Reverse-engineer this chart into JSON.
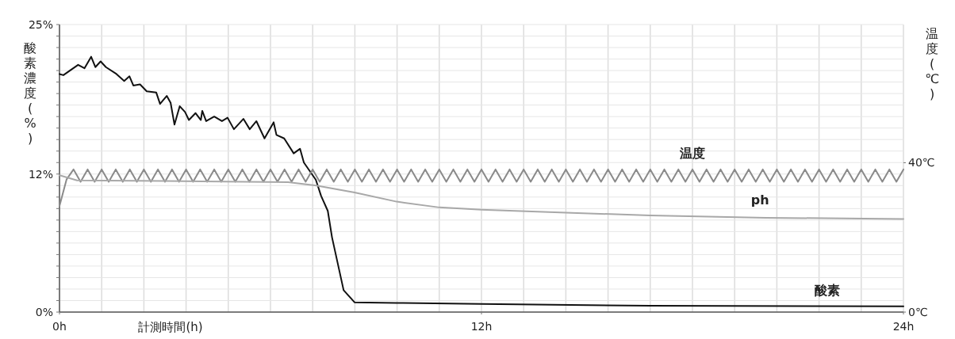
{
  "chart_data": {
    "type": "line",
    "xlabel": "計測時間(h)",
    "ylabel": "酸素濃度(%)",
    "y2label": "温度(℃)",
    "xlim": [
      0,
      24
    ],
    "ylim": [
      0,
      25
    ],
    "y2lim": [
      0,
      77
    ],
    "xticks": [
      {
        "value": 0,
        "label": "0h"
      },
      {
        "value": 1.2,
        "label": null
      },
      {
        "value": 2.4,
        "label": null
      },
      {
        "value": 3.6,
        "label": null
      },
      {
        "value": 4.8,
        "label": null
      },
      {
        "value": 6,
        "label": null
      },
      {
        "value": 7.2,
        "label": null
      },
      {
        "value": 8.4,
        "label": null
      },
      {
        "value": 9.6,
        "label": null
      },
      {
        "value": 10.8,
        "label": null
      },
      {
        "value": 12,
        "label": "12h"
      },
      {
        "value": 13.2,
        "label": null
      },
      {
        "value": 14.4,
        "label": null
      },
      {
        "value": 15.6,
        "label": null
      },
      {
        "value": 16.8,
        "label": null
      },
      {
        "value": 18,
        "label": null
      },
      {
        "value": 19.2,
        "label": null
      },
      {
        "value": 20.4,
        "label": null
      },
      {
        "value": 21.6,
        "label": null
      },
      {
        "value": 22.8,
        "label": null
      },
      {
        "value": 24,
        "label": "24h"
      }
    ],
    "yticks": [
      {
        "value": 0,
        "label": "0%"
      },
      {
        "value": 1,
        "label": null
      },
      {
        "value": 2,
        "label": null
      },
      {
        "value": 3,
        "label": null
      },
      {
        "value": 4,
        "label": null
      },
      {
        "value": 5,
        "label": null
      },
      {
        "value": 6,
        "label": null
      },
      {
        "value": 7,
        "label": null
      },
      {
        "value": 8,
        "label": null
      },
      {
        "value": 9,
        "label": null
      },
      {
        "value": 10,
        "label": null
      },
      {
        "value": 11,
        "label": null
      },
      {
        "value": 12,
        "label": "12%"
      },
      {
        "value": 13,
        "label": null
      },
      {
        "value": 14,
        "label": null
      },
      {
        "value": 15,
        "label": null
      },
      {
        "value": 16,
        "label": null
      },
      {
        "value": 17,
        "label": null
      },
      {
        "value": 18,
        "label": null
      },
      {
        "value": 19,
        "label": null
      },
      {
        "value": 20,
        "label": null
      },
      {
        "value": 21,
        "label": null
      },
      {
        "value": 22,
        "label": null
      },
      {
        "value": 23,
        "label": null
      },
      {
        "value": 24,
        "label": null
      },
      {
        "value": 25,
        "label": "25%"
      }
    ],
    "y2ticks": [
      {
        "value": 0,
        "label": "0℃"
      },
      {
        "value": 40,
        "label": "40℃"
      }
    ],
    "grid": true,
    "series": [
      {
        "name": "酸素",
        "color": "#111111",
        "x": [
          0,
          0.11,
          0.53,
          0.71,
          0.9,
          1.02,
          1.17,
          1.32,
          1.62,
          1.84,
          1.99,
          2.1,
          2.29,
          2.48,
          2.75,
          2.86,
          3.05,
          3.16,
          3.27,
          3.42,
          3.57,
          3.68,
          3.87,
          4.02,
          4.06,
          4.17,
          4.4,
          4.62,
          4.78,
          4.96,
          5.23,
          5.41,
          5.6,
          5.83,
          6.09,
          6.17,
          6.39,
          6.66,
          6.84,
          6.95,
          7.29,
          7.44,
          7.63,
          7.75,
          8.08,
          8.39,
          9.59,
          12,
          16.8,
          24
        ],
        "values": [
          20.7,
          20.6,
          21.5,
          21.2,
          22.2,
          21.3,
          21.8,
          21.3,
          20.7,
          20.1,
          20.5,
          19.7,
          19.8,
          19.2,
          19.1,
          18.1,
          18.8,
          18.2,
          16.3,
          17.9,
          17.4,
          16.7,
          17.3,
          16.7,
          17.5,
          16.6,
          17.0,
          16.6,
          16.9,
          15.9,
          16.8,
          15.9,
          16.6,
          15.1,
          16.5,
          15.4,
          15.1,
          13.8,
          14.2,
          13.0,
          11.5,
          10.1,
          8.8,
          6.5,
          1.9,
          0.85,
          0.8,
          0.7,
          0.55,
          0.5
        ]
      },
      {
        "name": "温度",
        "color": "#8a8a8a",
        "axis": "y2",
        "x": [
          0,
          0.2,
          0.4,
          0.6,
          0.8,
          1,
          1.2,
          1.4,
          1.6,
          1.8,
          2,
          2.2,
          2.4,
          2.6,
          2.8,
          3,
          3.2,
          3.4,
          3.6,
          3.8,
          4,
          4.2,
          4.4,
          4.6,
          4.8,
          5,
          5.2,
          5.4,
          5.6,
          5.8,
          6,
          6.2,
          6.4,
          6.6,
          6.8,
          7,
          7.2,
          7.4,
          7.6,
          7.8,
          8,
          8.2,
          8.4,
          8.6,
          8.8,
          9,
          9.2,
          9.4,
          9.6,
          9.8,
          10,
          10.2,
          10.4,
          10.6,
          10.8,
          11,
          11.2,
          11.4,
          11.6,
          11.8,
          12,
          12.2,
          12.4,
          12.6,
          12.8,
          13,
          13.2,
          13.4,
          13.6,
          13.8,
          14,
          14.2,
          14.4,
          14.6,
          14.8,
          15,
          15.2,
          15.4,
          15.6,
          15.8,
          16,
          16.2,
          16.4,
          16.6,
          16.8,
          17,
          17.2,
          17.4,
          17.6,
          17.8,
          18,
          18.2,
          18.4,
          18.6,
          18.8,
          19,
          19.2,
          19.4,
          19.6,
          19.8,
          20,
          20.2,
          20.4,
          20.6,
          20.8,
          21,
          21.2,
          21.4,
          21.6,
          21.8,
          22,
          22.2,
          22.4,
          22.6,
          22.8,
          23,
          23.2,
          23.4,
          23.6,
          23.8,
          24
        ],
        "values": [
          28.4,
          35.5,
          38.2,
          34.9,
          38.2,
          34.9,
          38.2,
          34.9,
          38.2,
          34.9,
          38.2,
          34.9,
          38.2,
          34.9,
          38.2,
          34.9,
          38.2,
          34.9,
          38.2,
          34.9,
          38.2,
          34.9,
          38.2,
          34.9,
          38.2,
          34.9,
          38.2,
          34.9,
          38.2,
          34.9,
          38.2,
          34.9,
          38.2,
          34.9,
          38.2,
          34.9,
          38.2,
          34.9,
          38.2,
          34.9,
          38.2,
          34.9,
          38.2,
          34.9,
          38.2,
          34.9,
          38.2,
          34.9,
          38.2,
          34.9,
          38.2,
          34.9,
          38.2,
          34.9,
          38.2,
          34.9,
          38.2,
          34.9,
          38.2,
          34.9,
          38.2,
          34.9,
          38.2,
          34.9,
          38.2,
          34.9,
          38.2,
          34.9,
          38.2,
          34.9,
          38.2,
          34.9,
          38.2,
          34.9,
          38.2,
          34.9,
          38.2,
          34.9,
          38.2,
          34.9,
          38.2,
          34.9,
          38.2,
          34.9,
          38.2,
          34.9,
          38.2,
          34.9,
          38.2,
          34.9,
          38.2,
          34.9,
          38.2,
          34.9,
          38.2,
          34.9,
          38.2,
          34.9,
          38.2,
          34.9,
          38.2,
          34.9,
          38.2,
          34.9,
          38.2,
          34.9,
          38.2,
          34.9,
          38.2,
          34.9,
          38.2,
          34.9,
          38.2,
          34.9,
          38.2,
          34.9,
          38.2,
          34.9,
          38.2,
          34.9,
          38.2
        ]
      },
      {
        "name": "ph",
        "color": "#a8a8a8",
        "x": [
          0,
          0.5,
          3,
          6.5,
          7.3,
          8.39,
          9.59,
          10.8,
          12,
          14.4,
          16.8,
          20.1,
          24
        ],
        "values": [
          11.9,
          11.45,
          11.4,
          11.3,
          11.0,
          10.4,
          9.6,
          9.1,
          8.9,
          8.65,
          8.4,
          8.2,
          8.1
        ]
      }
    ]
  }
}
